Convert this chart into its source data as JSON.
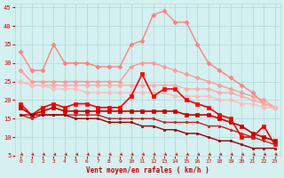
{
  "x": [
    0,
    1,
    2,
    3,
    4,
    5,
    6,
    7,
    8,
    9,
    10,
    11,
    12,
    13,
    14,
    15,
    16,
    17,
    18,
    19,
    20,
    21,
    22,
    23
  ],
  "series": [
    {
      "color": "#ff8080",
      "lw": 1.0,
      "marker": "D",
      "ms": 2.5,
      "y": [
        33,
        28,
        28,
        35,
        30,
        30,
        30,
        29,
        29,
        29,
        35,
        36,
        43,
        44,
        41,
        41,
        35,
        30,
        28,
        26,
        24,
        22,
        19,
        18
      ]
    },
    {
      "color": "#ff9999",
      "lw": 1.0,
      "marker": "D",
      "ms": 2.5,
      "y": [
        28,
        25,
        25,
        25,
        25,
        25,
        25,
        25,
        25,
        25,
        29,
        30,
        30,
        29,
        28,
        27,
        26,
        25,
        24,
        23,
        22,
        21,
        20,
        18
      ]
    },
    {
      "color": "#ffaaaa",
      "lw": 1.0,
      "marker": "D",
      "ms": 2.5,
      "y": [
        25,
        24,
        24,
        24,
        24,
        24,
        24,
        24,
        24,
        24,
        24,
        24,
        24,
        24,
        24,
        23,
        23,
        23,
        22,
        22,
        21,
        20,
        19,
        18
      ]
    },
    {
      "color": "#ffbbbb",
      "lw": 1.0,
      "marker": "D",
      "ms": 2.5,
      "y": [
        25,
        24,
        24,
        23,
        23,
        23,
        22,
        22,
        22,
        22,
        22,
        22,
        22,
        22,
        21,
        21,
        21,
        21,
        20,
        20,
        19,
        19,
        18,
        18
      ]
    },
    {
      "color": "#ff0000",
      "lw": 1.2,
      "marker": "s",
      "ms": 2.5,
      "y": [
        19,
        16,
        18,
        19,
        18,
        19,
        19,
        18,
        18,
        18,
        21,
        27,
        21,
        23,
        23,
        20,
        19,
        18,
        16,
        15,
        10,
        10,
        13,
        8
      ]
    },
    {
      "color": "#cc0000",
      "lw": 1.2,
      "marker": "s",
      "ms": 2.5,
      "y": [
        18,
        16,
        17,
        18,
        17,
        17,
        17,
        17,
        17,
        17,
        17,
        17,
        17,
        17,
        17,
        16,
        16,
        16,
        15,
        14,
        13,
        11,
        10,
        9
      ]
    },
    {
      "color": "#cc2222",
      "lw": 1.0,
      "marker": "s",
      "ms": 2.0,
      "y": [
        16,
        15,
        16,
        16,
        16,
        16,
        16,
        16,
        15,
        15,
        15,
        15,
        15,
        14,
        14,
        14,
        14,
        13,
        13,
        12,
        11,
        10,
        9,
        8
      ]
    },
    {
      "color": "#990000",
      "lw": 1.0,
      "marker": "s",
      "ms": 2.0,
      "y": [
        16,
        16,
        16,
        16,
        16,
        15,
        15,
        15,
        14,
        14,
        14,
        13,
        13,
        12,
        12,
        11,
        11,
        10,
        9,
        9,
        8,
        7,
        7,
        7
      ]
    }
  ],
  "xlabel": "Vent moyen/en rafales ( km/h )",
  "xlim": [
    -0.5,
    23.5
  ],
  "ylim": [
    5,
    46
  ],
  "yticks": [
    5,
    10,
    15,
    20,
    25,
    30,
    35,
    40,
    45
  ],
  "xticks": [
    0,
    1,
    2,
    3,
    4,
    5,
    6,
    7,
    8,
    9,
    10,
    11,
    12,
    13,
    14,
    15,
    16,
    17,
    18,
    19,
    20,
    21,
    22,
    23
  ],
  "bg_color": "#d4f0f0",
  "grid_color": "#b8dada",
  "tick_color": "#cc0000",
  "label_color": "#cc0000"
}
